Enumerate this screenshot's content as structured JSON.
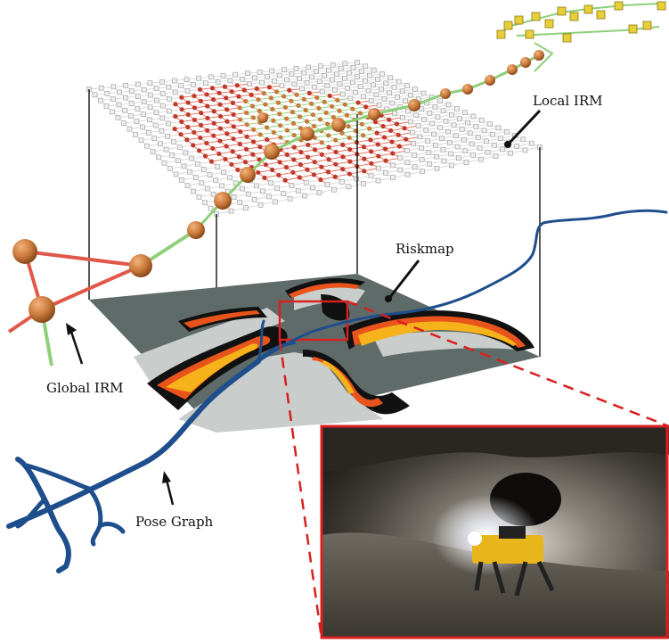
{
  "labels": {
    "local_irm": "Local IRM",
    "riskmap": "Riskmap",
    "global_irm": "Global IRM",
    "pose_graph": "Pose Graph"
  },
  "colors": {
    "pose_graph": "#1f4e8c",
    "global_edge_red": "#e0584a",
    "global_edge_green": "#8fcf7a",
    "node_orange": "#c97a3a",
    "risk_safe": "#c9cdcb",
    "risk_lethal": "#111111",
    "risk_mid": "#e8541c",
    "risk_low": "#f5b21a",
    "riskmap_base": "#5f6b68",
    "inset_border": "#d92020"
  },
  "inset": {
    "description_icon": "photo-icon"
  }
}
